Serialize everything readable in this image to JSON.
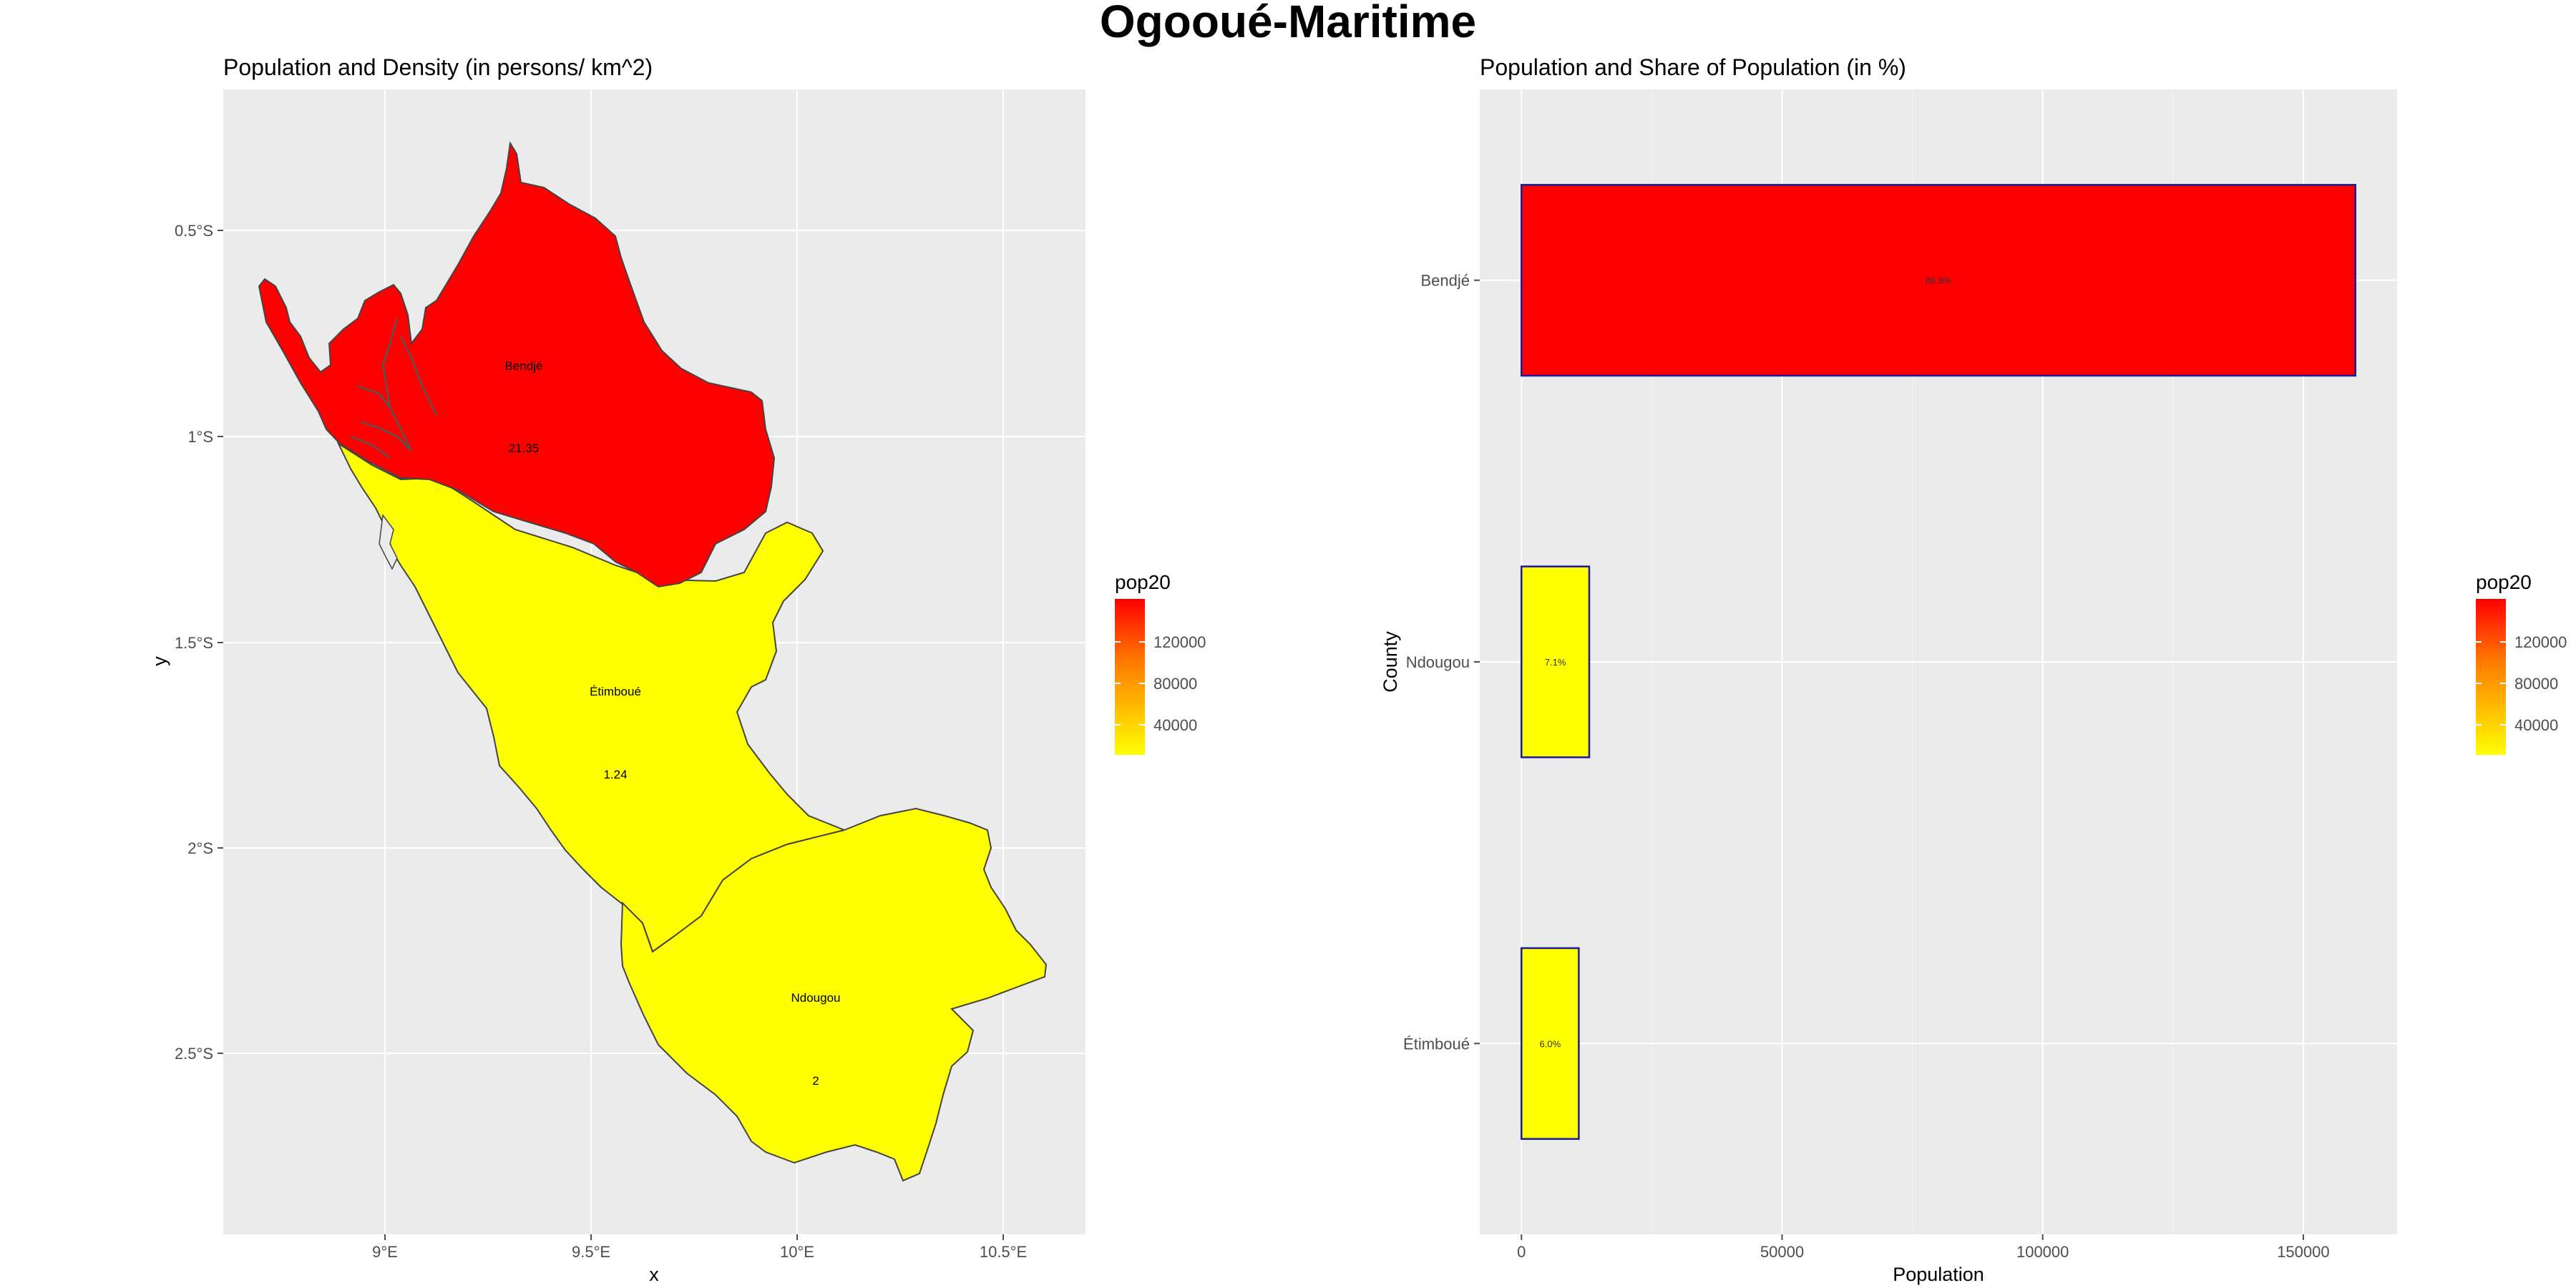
{
  "title": "Ogooué-Maritime",
  "colors": {
    "panel_bg": "#ebebeb",
    "grid": "#ffffff",
    "low": "#ffff00",
    "high": "#ff0000",
    "bar_border": "#1a1a9c",
    "map_border": "#444444"
  },
  "map_panel": {
    "subtitle": "Population and Density (in persons/ km^2)",
    "xlabel": "x",
    "ylabel": "y",
    "xticks": [
      "9°E",
      "9.5°E",
      "10°E",
      "10.5°E"
    ],
    "yticks": [
      "0.5°S",
      "1°S",
      "1.5°S",
      "2°S",
      "2.5°S"
    ],
    "regions": [
      {
        "name": "Bendjé",
        "density": "21.35",
        "fill": "#ff0000"
      },
      {
        "name": "Étimboué",
        "density": "1.24",
        "fill": "#ffff00"
      },
      {
        "name": "Ndougou",
        "density": "2",
        "fill": "#ffff00"
      }
    ],
    "legend": {
      "title": "pop20",
      "ticks": [
        "120000",
        "80000",
        "40000"
      ]
    }
  },
  "chart_data": {
    "type": "bar",
    "orientation": "horizontal",
    "title": "Population and Share of Population (in %)",
    "xlabel": "Population",
    "ylabel": "County",
    "categories": [
      "Bendjé",
      "Ndougou",
      "Étimboué"
    ],
    "values": [
      160000,
      13000,
      11000
    ],
    "labels": [
      "86.9%",
      "7.1%",
      "6.0%"
    ],
    "fill_colors": [
      "#ff0000",
      "#ffff00",
      "#ffff00"
    ],
    "xlim": [
      -8000,
      168000
    ],
    "xticks": [
      0,
      50000,
      100000,
      150000
    ],
    "xtick_labels": [
      "0",
      "50000",
      "100000",
      "150000"
    ],
    "grid": true,
    "legend": {
      "title": "pop20",
      "ticks": [
        "120000",
        "80000",
        "40000"
      ],
      "position": "right"
    }
  }
}
